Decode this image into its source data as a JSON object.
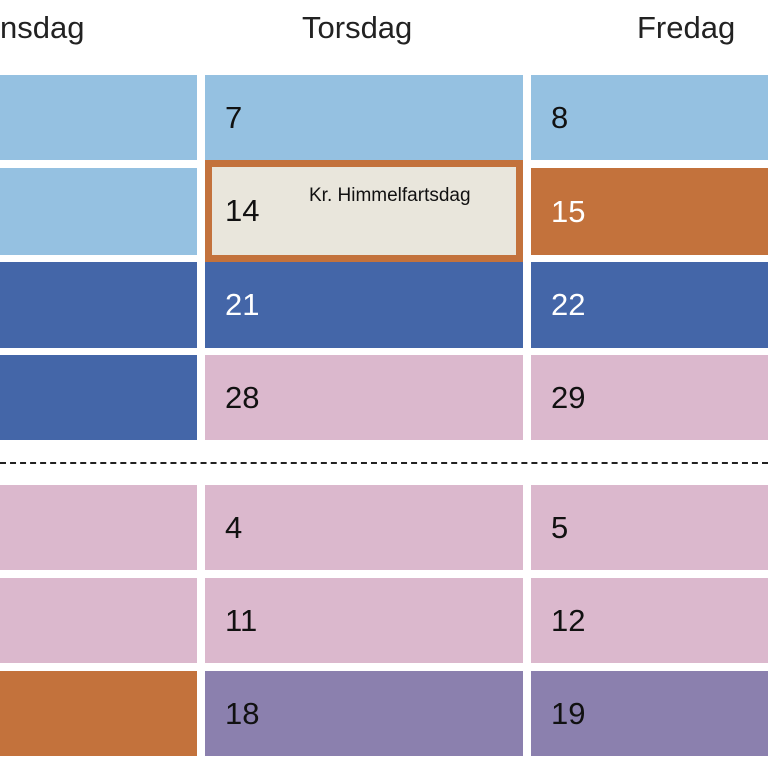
{
  "headers": [
    "nsdag",
    "Torsdag",
    "Fredag"
  ],
  "rows": [
    {
      "cells": [
        "",
        "7",
        "8"
      ]
    },
    {
      "cells": [
        "",
        "14",
        "15"
      ],
      "holiday": "Kr. Himmelfartsdag"
    },
    {
      "cells": [
        "",
        "21",
        "22"
      ]
    },
    {
      "cells": [
        "",
        "28",
        "29"
      ]
    },
    {
      "cells": [
        "",
        "4",
        "5"
      ]
    },
    {
      "cells": [
        "",
        "11",
        "12"
      ]
    },
    {
      "cells": [
        "",
        "18",
        "19"
      ]
    }
  ],
  "colors": {
    "light_blue": "#95c1e1",
    "dark_blue": "#4466a8",
    "pink": "#dbb8cd",
    "orange": "#c3723c",
    "purple": "#8b80ae",
    "cream": "#e9e6dc"
  }
}
